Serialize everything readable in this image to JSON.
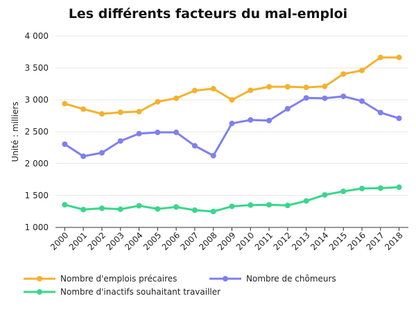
{
  "chart_data": {
    "type": "line",
    "title": "Les différents facteurs du mal-emploi",
    "ylabel": "Unité : milliers",
    "xlabel": "",
    "x": [
      "2000",
      "2001",
      "2002",
      "2003",
      "2004",
      "2005",
      "2006",
      "2007",
      "2008",
      "2009",
      "2010",
      "2011",
      "2012",
      "2013",
      "2014",
      "2015",
      "2016",
      "2017",
      "2018"
    ],
    "ylim": [
      1000,
      4000
    ],
    "yticks": [
      1000,
      1500,
      2000,
      2500,
      3000,
      3500,
      4000
    ],
    "ytick_labels": [
      "1 000",
      "1 500",
      "2 000",
      "2 500",
      "3 000",
      "3 500",
      "4 000"
    ],
    "grid": true,
    "legend_position": "bottom",
    "series": [
      {
        "name": "Nombre d'emplois précaires",
        "color": "#f5b12d",
        "values": [
          2940,
          2855,
          2780,
          2805,
          2815,
          2970,
          3025,
          3145,
          3175,
          3000,
          3150,
          3205,
          3205,
          3195,
          3210,
          3405,
          3460,
          3665,
          3665
        ]
      },
      {
        "name": "Nombre de chômeurs",
        "color": "#7f7ff0",
        "values": [
          2305,
          2115,
          2170,
          2355,
          2470,
          2490,
          2490,
          2280,
          2125,
          2630,
          2685,
          2675,
          2860,
          3030,
          3025,
          3055,
          2980,
          2800,
          2710
        ]
      },
      {
        "name": "Nombre d'inactifs souhaitant travailler",
        "color": "#3ad68c",
        "values": [
          1355,
          1280,
          1300,
          1285,
          1340,
          1290,
          1320,
          1270,
          1250,
          1330,
          1350,
          1355,
          1345,
          1415,
          1510,
          1565,
          1610,
          1615,
          1630
        ]
      }
    ]
  }
}
